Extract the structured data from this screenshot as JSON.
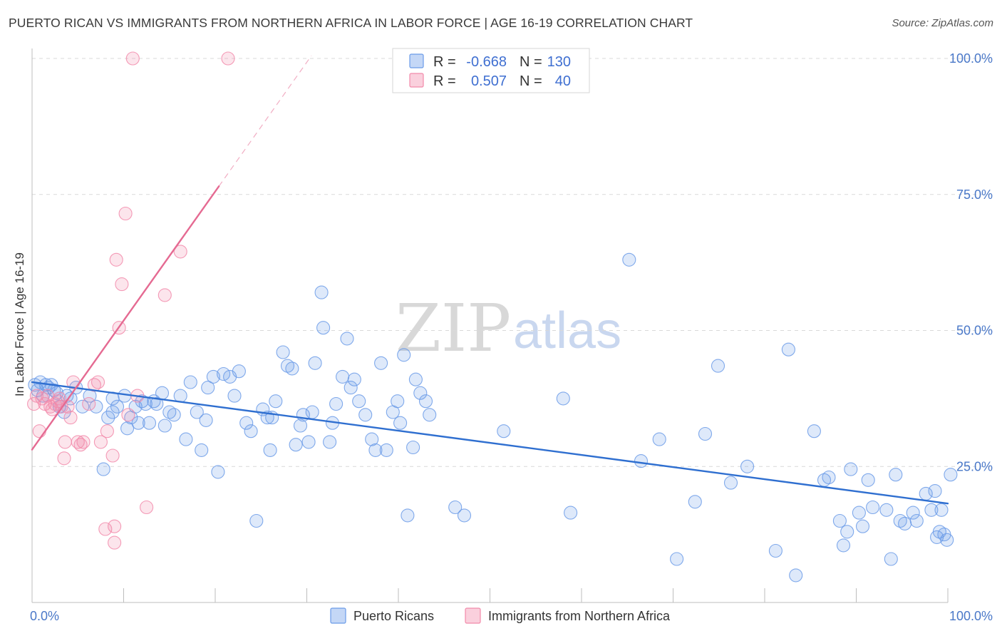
{
  "header": {
    "title": "PUERTO RICAN VS IMMIGRANTS FROM NORTHERN AFRICA IN LABOR FORCE | AGE 16-19 CORRELATION CHART",
    "source": "Source: ZipAtlas.com"
  },
  "watermark": {
    "zip": "ZIP",
    "atlas": "atlas"
  },
  "legend": {
    "rows": [
      {
        "r_label": "R =",
        "r_value": "-0.668",
        "n_label": "N =",
        "n_value": "130",
        "color": "#6b9be8"
      },
      {
        "r_label": "R =",
        "r_value": "0.507",
        "n_label": "N =",
        "n_value": "40",
        "color": "#f28aaa"
      }
    ]
  },
  "chart_data": {
    "type": "scatter",
    "xlabel": "",
    "ylabel": "In Labor Force | Age 16-19",
    "xlim": [
      0,
      100
    ],
    "ylim": [
      0,
      100
    ],
    "x_tick_labels": [
      "0.0%",
      "100.0%"
    ],
    "y_ticks": [
      25,
      50,
      75,
      100
    ],
    "y_tick_labels": [
      "25.0%",
      "50.0%",
      "75.0%",
      "100.0%"
    ],
    "grid": "horizontal dashed",
    "legend_position": "bottom",
    "series": [
      {
        "name": "Puerto Ricans",
        "color": "#6b9be8",
        "trend": {
          "x": [
            0,
            100
          ],
          "y": [
            40.5,
            18.2
          ],
          "color": "#2f6fd0"
        },
        "points": [
          [
            0.3,
            40
          ],
          [
            0.6,
            39
          ],
          [
            0.9,
            40.5
          ],
          [
            1.2,
            38
          ],
          [
            1.5,
            40
          ],
          [
            1.8,
            39.5
          ],
          [
            2.1,
            40
          ],
          [
            2.4,
            39
          ],
          [
            2.7,
            38.5
          ],
          [
            3,
            36
          ],
          [
            3.5,
            35
          ],
          [
            3.8,
            38
          ],
          [
            4.2,
            37.5
          ],
          [
            4.8,
            39.5
          ],
          [
            5.5,
            36
          ],
          [
            6.3,
            38
          ],
          [
            7,
            36
          ],
          [
            7.8,
            24.5
          ],
          [
            8.3,
            34
          ],
          [
            8.8,
            37.5
          ],
          [
            8.8,
            35
          ],
          [
            9.3,
            36
          ],
          [
            10.1,
            38
          ],
          [
            10.4,
            32
          ],
          [
            10.8,
            34
          ],
          [
            11.3,
            36
          ],
          [
            11.6,
            33
          ],
          [
            12,
            37
          ],
          [
            12.4,
            36.5
          ],
          [
            12.8,
            33
          ],
          [
            13.3,
            37
          ],
          [
            13.6,
            36.5
          ],
          [
            14.2,
            38.5
          ],
          [
            14.5,
            32.5
          ],
          [
            15,
            35
          ],
          [
            15.5,
            34.5
          ],
          [
            16.2,
            38
          ],
          [
            16.8,
            30
          ],
          [
            17.3,
            40.5
          ],
          [
            18,
            35
          ],
          [
            18.5,
            28
          ],
          [
            19,
            33.5
          ],
          [
            19.2,
            39.5
          ],
          [
            19.8,
            41.5
          ],
          [
            20.3,
            24
          ],
          [
            20.9,
            42
          ],
          [
            21.6,
            41.5
          ],
          [
            22.1,
            38
          ],
          [
            22.6,
            42.5
          ],
          [
            23.4,
            33
          ],
          [
            23.9,
            31.5
          ],
          [
            24.5,
            15
          ],
          [
            25.2,
            35.5
          ],
          [
            25.7,
            34
          ],
          [
            26,
            28
          ],
          [
            26.2,
            34
          ],
          [
            26.6,
            37
          ],
          [
            27.4,
            46
          ],
          [
            27.9,
            43.5
          ],
          [
            28.4,
            43
          ],
          [
            28.8,
            29
          ],
          [
            29.3,
            32.5
          ],
          [
            29.6,
            34.5
          ],
          [
            30.2,
            29.5
          ],
          [
            30.6,
            35
          ],
          [
            30.9,
            44
          ],
          [
            31.6,
            57
          ],
          [
            31.8,
            50.5
          ],
          [
            32.5,
            29.5
          ],
          [
            32.8,
            33
          ],
          [
            33.2,
            36.5
          ],
          [
            33.9,
            41.5
          ],
          [
            34.4,
            48.5
          ],
          [
            34.8,
            39.5
          ],
          [
            35.2,
            41
          ],
          [
            35.7,
            37
          ],
          [
            36.4,
            34.5
          ],
          [
            37.1,
            30
          ],
          [
            37.5,
            28
          ],
          [
            38.1,
            44
          ],
          [
            38.7,
            28
          ],
          [
            39.4,
            35
          ],
          [
            39.9,
            37
          ],
          [
            40.2,
            33
          ],
          [
            40.6,
            45.5
          ],
          [
            41,
            16
          ],
          [
            41.6,
            28.5
          ],
          [
            41.9,
            41
          ],
          [
            42.4,
            38.5
          ],
          [
            43,
            37
          ],
          [
            43.4,
            34.5
          ],
          [
            46.2,
            17.5
          ],
          [
            47.2,
            16
          ],
          [
            51.5,
            31.5
          ],
          [
            58,
            37.5
          ],
          [
            58.8,
            16.5
          ],
          [
            65.2,
            63
          ],
          [
            66.5,
            26
          ],
          [
            68.5,
            30
          ],
          [
            70.4,
            8
          ],
          [
            72.4,
            18.5
          ],
          [
            73.5,
            31
          ],
          [
            74.9,
            43.5
          ],
          [
            76.3,
            22
          ],
          [
            78.1,
            25
          ],
          [
            81.2,
            9.5
          ],
          [
            82.6,
            46.5
          ],
          [
            83.4,
            5
          ],
          [
            85.4,
            31.5
          ],
          [
            86.5,
            22.5
          ],
          [
            87,
            23
          ],
          [
            88.2,
            15
          ],
          [
            88.6,
            10.5
          ],
          [
            89,
            13
          ],
          [
            89.4,
            24.5
          ],
          [
            90.3,
            16.5
          ],
          [
            90.7,
            14
          ],
          [
            91.3,
            22.5
          ],
          [
            91.8,
            17.5
          ],
          [
            93.3,
            17
          ],
          [
            93.8,
            8
          ],
          [
            94.3,
            23.5
          ],
          [
            94.8,
            15
          ],
          [
            95.3,
            14.5
          ],
          [
            96.2,
            16.5
          ],
          [
            96.6,
            15
          ],
          [
            97.6,
            20
          ],
          [
            98.2,
            17
          ],
          [
            98.6,
            20.5
          ],
          [
            98.8,
            12
          ],
          [
            99.1,
            13
          ],
          [
            99.3,
            17
          ],
          [
            99.6,
            12.5
          ],
          [
            99.9,
            11.5
          ],
          [
            100.3,
            23.5
          ]
        ]
      },
      {
        "name": "Immigrants from Northern Africa",
        "color": "#f28aaa",
        "trend": {
          "x": [
            0,
            20.4
          ],
          "y": [
            28.1,
            76.5
          ],
          "color": "#e56a92"
        },
        "trend_dashed": {
          "x": [
            20.4,
            30.5
          ],
          "y": [
            76.5,
            100.5
          ]
        },
        "points": [
          [
            0.2,
            36.5
          ],
          [
            0.5,
            38
          ],
          [
            0.8,
            31.5
          ],
          [
            1.1,
            37.5
          ],
          [
            1.4,
            36.5
          ],
          [
            1.7,
            38
          ],
          [
            2,
            36
          ],
          [
            2.2,
            35.5
          ],
          [
            2.5,
            36.5
          ],
          [
            2.8,
            37
          ],
          [
            3,
            37.5
          ],
          [
            3.2,
            36
          ],
          [
            3.5,
            26.5
          ],
          [
            3.6,
            29.5
          ],
          [
            3.9,
            36
          ],
          [
            4.2,
            34
          ],
          [
            4.5,
            40.5
          ],
          [
            5,
            29.5
          ],
          [
            5.3,
            29
          ],
          [
            5.6,
            29.5
          ],
          [
            6.2,
            36.5
          ],
          [
            6.8,
            40
          ],
          [
            7.2,
            40.5
          ],
          [
            7.5,
            29.5
          ],
          [
            8,
            13.5
          ],
          [
            8.2,
            31.5
          ],
          [
            8.8,
            27
          ],
          [
            9,
            14
          ],
          [
            9,
            11
          ],
          [
            9.2,
            63
          ],
          [
            9.5,
            50.5
          ],
          [
            9.8,
            58.5
          ],
          [
            10.2,
            71.5
          ],
          [
            10.5,
            34.5
          ],
          [
            11,
            100
          ],
          [
            11.5,
            38
          ],
          [
            12.5,
            17.5
          ],
          [
            14.5,
            56.5
          ],
          [
            16.2,
            64.5
          ],
          [
            21.4,
            100
          ]
        ]
      }
    ]
  }
}
